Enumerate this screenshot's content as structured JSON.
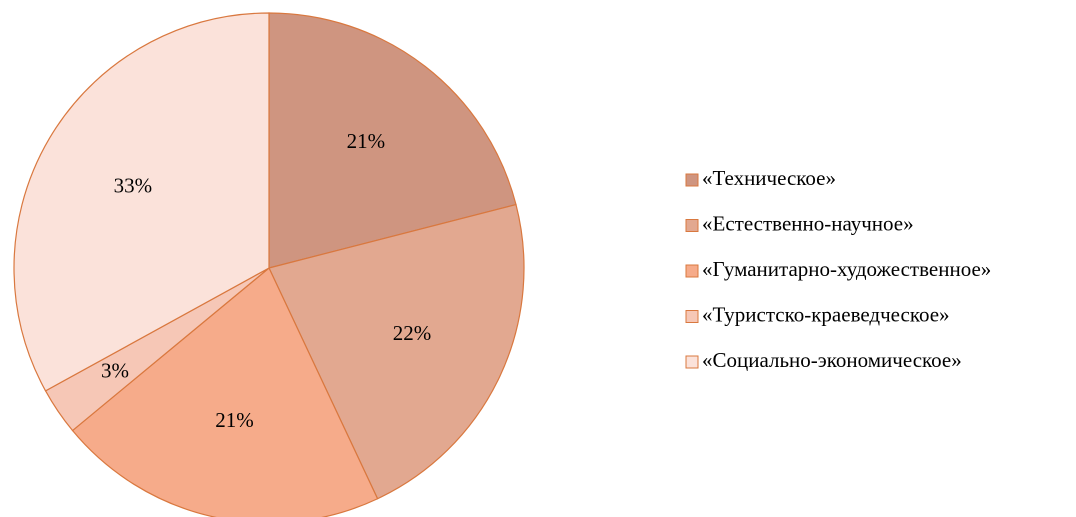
{
  "chart_data": {
    "type": "pie",
    "categories": [
      "«Техническое»",
      "«Естественно-научное»",
      "«Гуманитарно-художественное»",
      "«Туристско-краеведческое»",
      "«Социально-экономическое»"
    ],
    "values": [
      21,
      22,
      21,
      3,
      33
    ],
    "value_labels": [
      "21%",
      "22%",
      "21%",
      "3%",
      "33%"
    ],
    "colors": [
      "#cf9580",
      "#e2a890",
      "#f6ab8a",
      "#f6c7b6",
      "#fbe2da"
    ],
    "legend": "right"
  }
}
